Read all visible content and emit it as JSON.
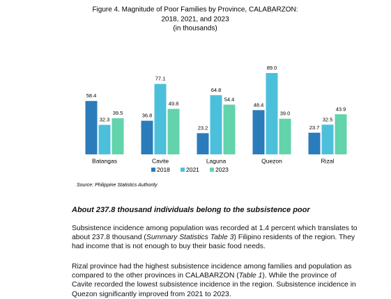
{
  "chart_data": {
    "type": "bar",
    "title": [
      "Figure 4. Magnitude of Poor Families by Province, CALABARZON:",
      "2018, 2021, and 2023",
      "(in thousands)"
    ],
    "categories": [
      "Batangas",
      "Cavite",
      "Laguna",
      "Quezon",
      "Rizal"
    ],
    "series": [
      {
        "name": "2018",
        "color": "#2b7cba",
        "values": [
          58.4,
          36.8,
          23.2,
          48.4,
          23.7
        ],
        "value_labels": [
          "58.4",
          "36.8",
          "23.2",
          "48.4",
          "23.7"
        ]
      },
      {
        "name": "2021",
        "color": "#4cc0db",
        "values": [
          32.3,
          77.1,
          64.8,
          89.0,
          32.5
        ],
        "value_labels": [
          "32.3",
          "77.1",
          "64.8",
          "89.0",
          "32.5"
        ]
      },
      {
        "name": "2023",
        "color": "#62d3aa",
        "values": [
          39.5,
          49.8,
          54.4,
          39.0,
          43.9
        ],
        "value_labels": [
          "39.5",
          "49.8",
          "54.4",
          "39.0",
          "43.9"
        ]
      }
    ],
    "source": "Source:  Philippine Statistics Authority"
  },
  "document": {
    "heading": "About 237.8 thousand individuals belong to the subsistence poor",
    "paragraphs": [
      [
        "Subsistence incidence among population was recorded at 1.4 percent which translates to about 237.8 thousand (",
        "Summary Statistics Table 3",
        ") Filipino residents of the region. They had income that is not enough to buy their basic food needs."
      ],
      [
        "Rizal province had the highest subsistence incidence among families and population as compared to the other provinces in CALABARZON (",
        "Table 1",
        "). While the province of Cavite recorded the lowest subsistence incidence in the region. Subsistence incidence in Quezon significantly improved from 2021 to 2023."
      ]
    ]
  }
}
